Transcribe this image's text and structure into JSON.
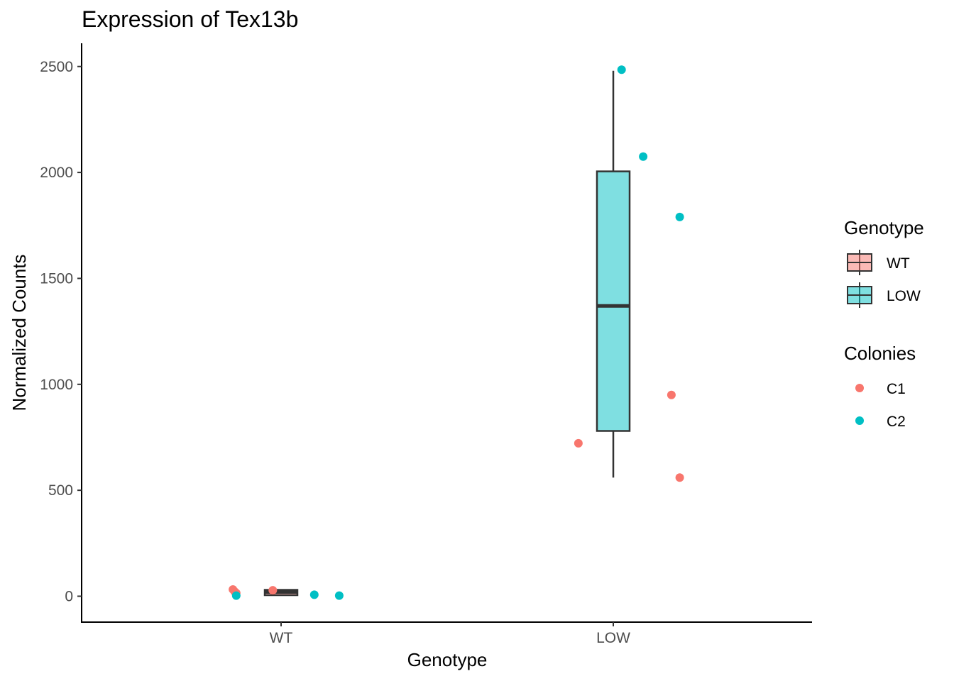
{
  "chart_data": {
    "type": "box",
    "title": "Expression of Tex13b",
    "xlabel": "Genotype",
    "ylabel": "Normalized Counts",
    "categories": [
      "WT",
      "LOW"
    ],
    "ylim": [
      -120,
      2600
    ],
    "yticks": [
      0,
      500,
      1000,
      1500,
      2000,
      2500
    ],
    "ytick_labels": [
      "0",
      "500",
      "1000",
      "1500",
      "2000",
      "2500"
    ],
    "grid": false,
    "boxes": [
      {
        "category": "WT",
        "min": 5,
        "q1": 5,
        "median": 20,
        "q3": 30,
        "max": 30,
        "fill": "#F8766D"
      },
      {
        "category": "LOW",
        "min": 560,
        "q1": 780,
        "median": 1370,
        "q3": 2005,
        "max": 2480,
        "fill": "#00BFC4"
      }
    ],
    "points": [
      {
        "category": "WT",
        "offset": -0.145,
        "value": 32,
        "colony": "C1"
      },
      {
        "category": "WT",
        "offset": -0.14,
        "value": 22,
        "colony": "C1"
      },
      {
        "category": "WT",
        "offset": -0.135,
        "value": 15,
        "colony": "C1"
      },
      {
        "category": "WT",
        "offset": -0.025,
        "value": 28,
        "colony": "C1"
      },
      {
        "category": "WT",
        "offset": -0.135,
        "value": 3,
        "colony": "C2"
      },
      {
        "category": "WT",
        "offset": 0.1,
        "value": 7,
        "colony": "C2"
      },
      {
        "category": "WT",
        "offset": 0.175,
        "value": 3,
        "colony": "C2"
      },
      {
        "category": "LOW",
        "offset": -0.105,
        "value": 722,
        "colony": "C1"
      },
      {
        "category": "LOW",
        "offset": 0.175,
        "value": 950,
        "colony": "C1"
      },
      {
        "category": "LOW",
        "offset": 0.2,
        "value": 560,
        "colony": "C1"
      },
      {
        "category": "LOW",
        "offset": 0.025,
        "value": 2485,
        "colony": "C2"
      },
      {
        "category": "LOW",
        "offset": 0.09,
        "value": 2075,
        "colony": "C2"
      },
      {
        "category": "LOW",
        "offset": 0.2,
        "value": 1790,
        "colony": "C2"
      }
    ],
    "legends": [
      {
        "title": "Genotype",
        "kind": "box",
        "items": [
          {
            "label": "WT",
            "color": "#F8766D"
          },
          {
            "label": "LOW",
            "color": "#00BFC4"
          }
        ]
      },
      {
        "title": "Colonies",
        "kind": "point",
        "items": [
          {
            "label": "C1",
            "color": "#F8766D"
          },
          {
            "label": "C2",
            "color": "#00BFC4"
          }
        ]
      }
    ],
    "legend_position": "right"
  },
  "colors": {
    "C1": "#F8766D",
    "C2": "#00BFC4",
    "box_outline": "#333333",
    "axis": "#000000"
  }
}
